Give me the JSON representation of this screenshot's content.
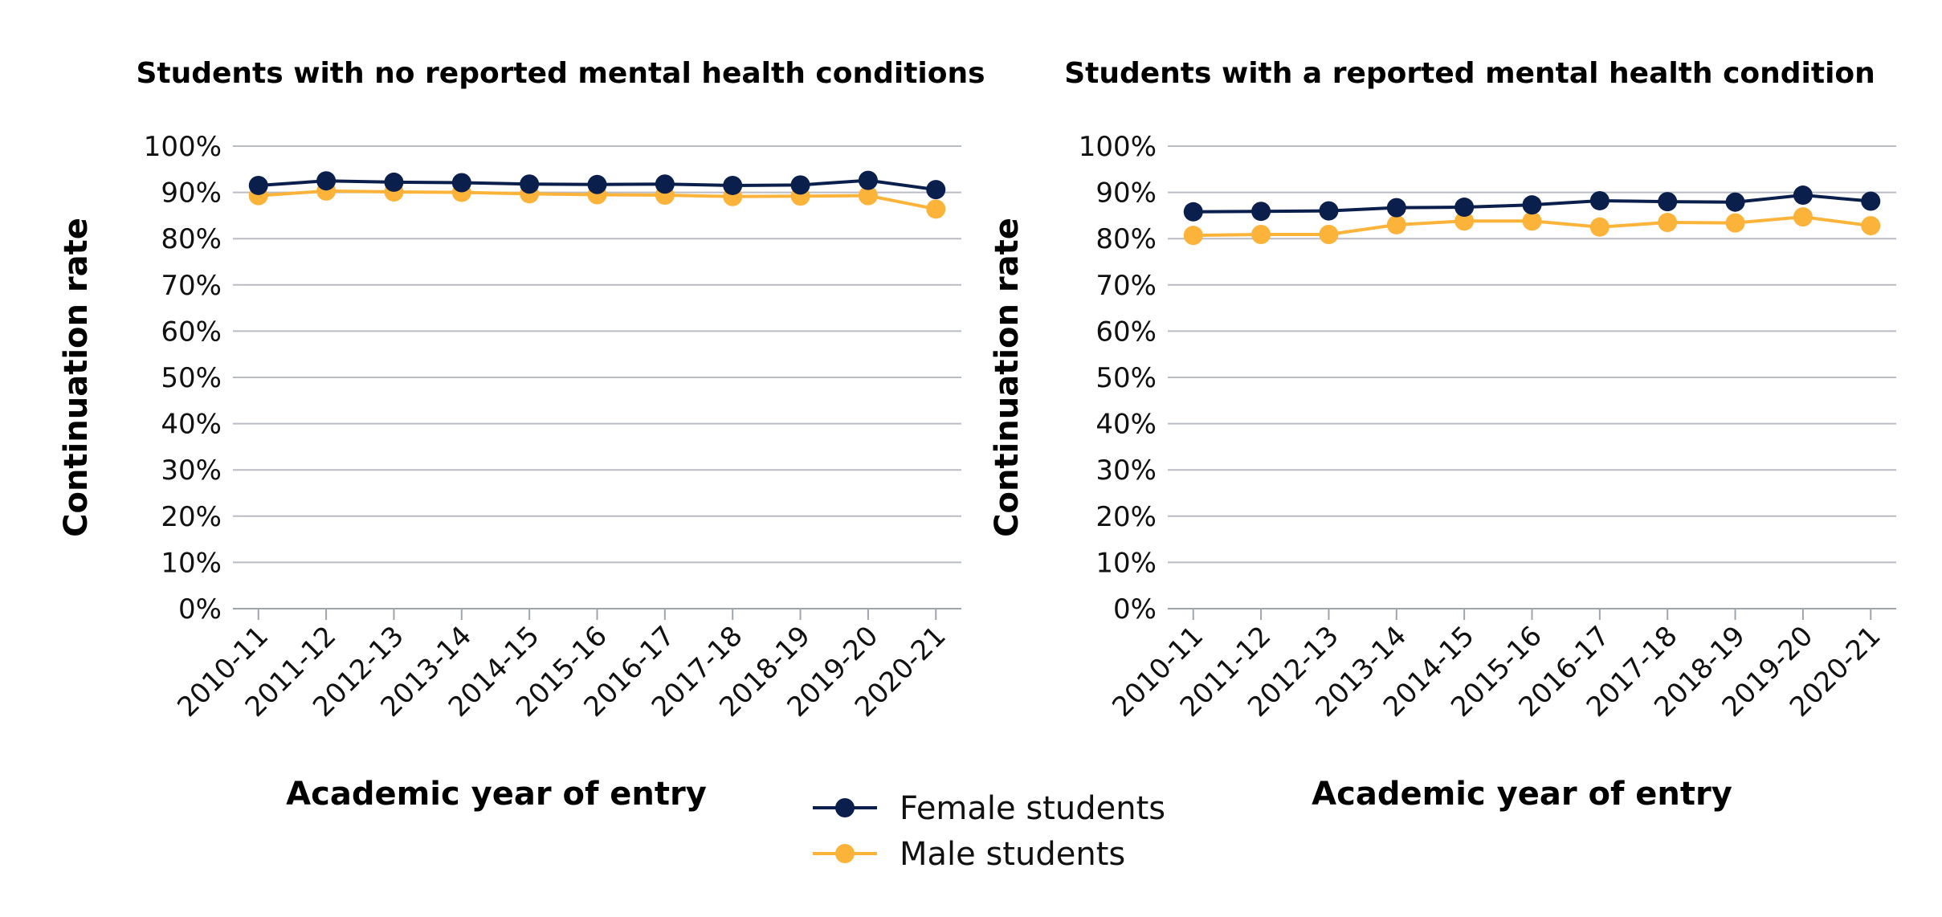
{
  "chart_data": [
    {
      "type": "line",
      "title": "Students with no reported mental health conditions",
      "xlabel": "Academic year of entry",
      "ylabel": "Continuation rate",
      "ylim": [
        0,
        100
      ],
      "yticks": [
        "0%",
        "10%",
        "20%",
        "30%",
        "40%",
        "50%",
        "60%",
        "70%",
        "80%",
        "90%",
        "100%"
      ],
      "grid": true,
      "categories": [
        "2010-11",
        "2011-12",
        "2012-13",
        "2013-14",
        "2014-15",
        "2015-16",
        "2016-17",
        "2017-18",
        "2018-19",
        "2019-20",
        "2020-21"
      ],
      "series": [
        {
          "name": "Female students",
          "color": "#0b1f4d",
          "values": [
            91.5,
            92.5,
            92.2,
            92.1,
            91.8,
            91.7,
            91.8,
            91.5,
            91.6,
            92.6,
            90.6
          ]
        },
        {
          "name": "Male students",
          "color": "#fbb33a",
          "values": [
            89.3,
            90.3,
            90.1,
            90.0,
            89.7,
            89.5,
            89.4,
            89.1,
            89.2,
            89.3,
            86.4
          ]
        }
      ]
    },
    {
      "type": "line",
      "title": "Students with a reported mental health condition",
      "xlabel": "Academic year of entry",
      "ylabel": "Continuation rate",
      "ylim": [
        0,
        100
      ],
      "yticks": [
        "0%",
        "10%",
        "20%",
        "30%",
        "40%",
        "50%",
        "60%",
        "70%",
        "80%",
        "90%",
        "100%"
      ],
      "grid": true,
      "categories": [
        "2010-11",
        "2011-12",
        "2012-13",
        "2013-14",
        "2014-15",
        "2015-16",
        "2016-17",
        "2017-18",
        "2018-19",
        "2019-20",
        "2020-21"
      ],
      "series": [
        {
          "name": "Female students",
          "color": "#0b1f4d",
          "values": [
            85.8,
            85.9,
            86.0,
            86.7,
            86.8,
            87.3,
            88.2,
            88.0,
            87.9,
            89.4,
            88.1
          ]
        },
        {
          "name": "Male students",
          "color": "#fbb33a",
          "values": [
            80.7,
            80.9,
            80.9,
            83.0,
            83.8,
            83.8,
            82.5,
            83.5,
            83.4,
            84.7,
            82.8
          ]
        }
      ]
    }
  ],
  "legend": {
    "placement": "bottom-center",
    "items": [
      {
        "label": "Female students",
        "color": "#0b1f4d"
      },
      {
        "label": "Male students",
        "color": "#fbb33a"
      }
    ]
  }
}
